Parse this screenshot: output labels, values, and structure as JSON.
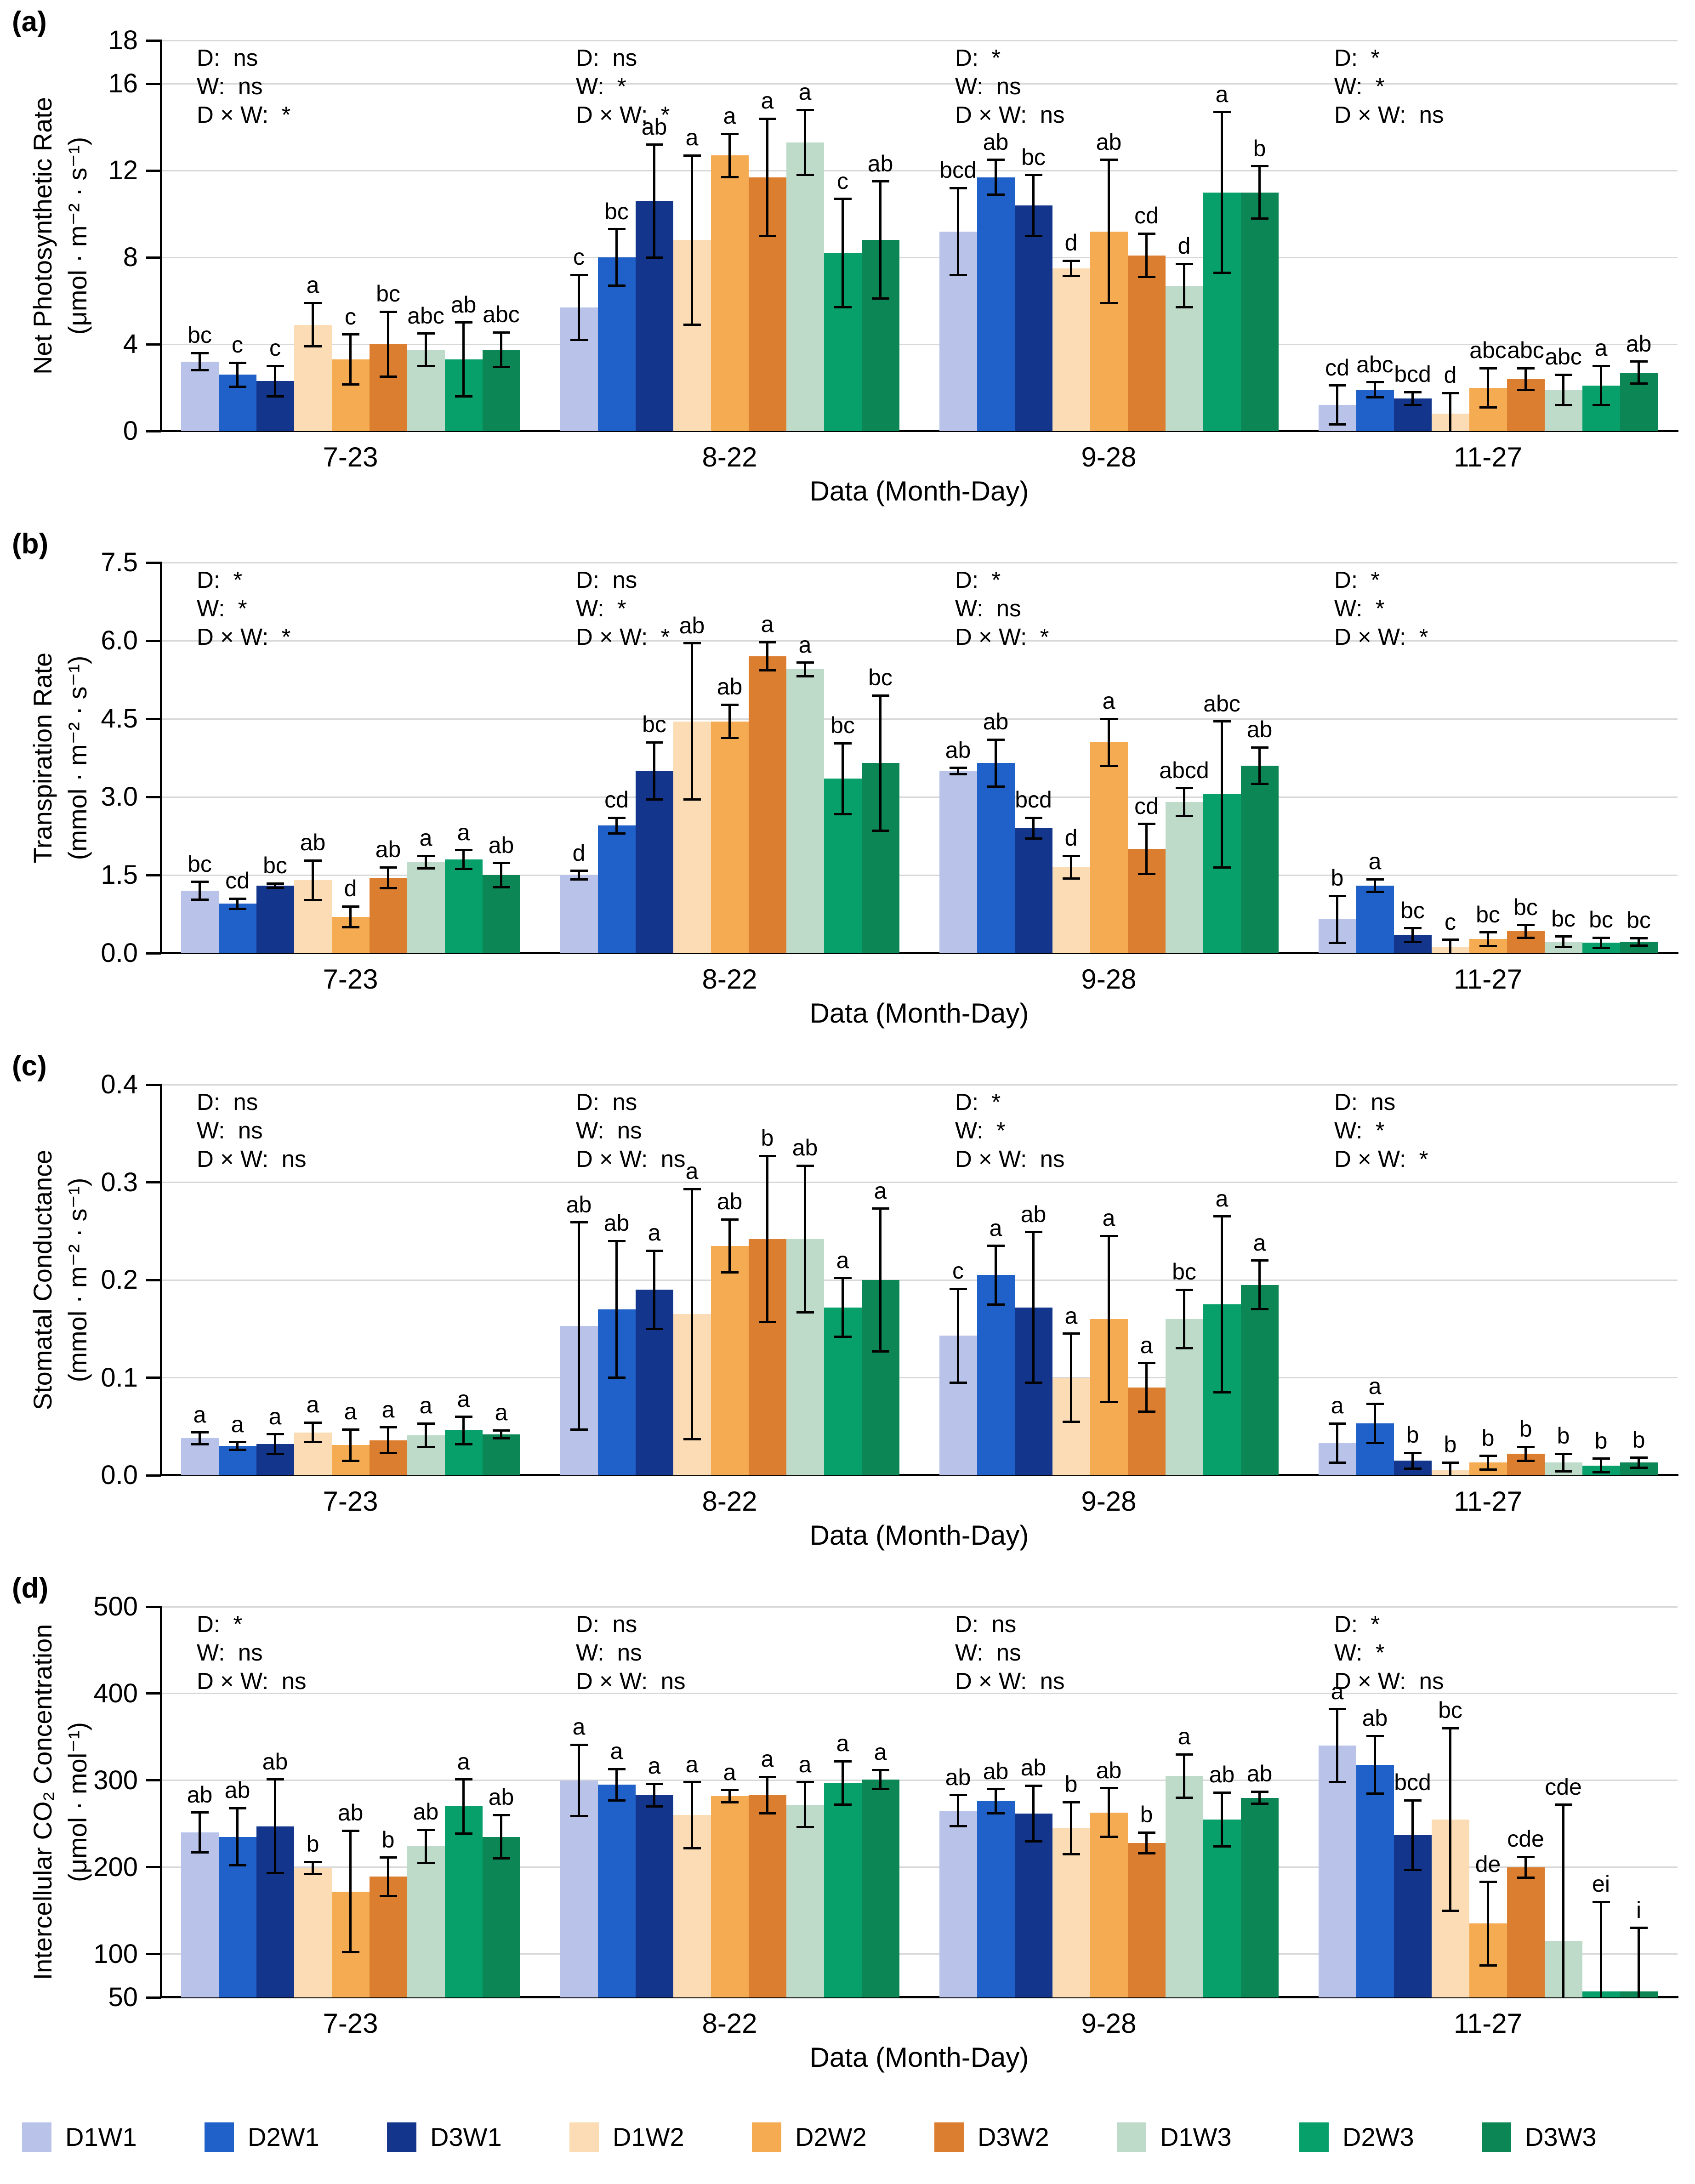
{
  "legend": {
    "series": [
      {
        "name": "D1W1",
        "color": "#b9c3e9"
      },
      {
        "name": "D2W1",
        "color": "#2061c9"
      },
      {
        "name": "D3W1",
        "color": "#13368c"
      },
      {
        "name": "D1W2",
        "color": "#fcdcb4"
      },
      {
        "name": "D2W2",
        "color": "#f5ab52"
      },
      {
        "name": "D3W2",
        "color": "#dc7e2f"
      },
      {
        "name": "D1W3",
        "color": "#bedbc9"
      },
      {
        "name": "D2W3",
        "color": "#07a06b"
      },
      {
        "name": "D3W3",
        "color": "#0c8655"
      }
    ]
  },
  "chart_data": [
    {
      "type": "bar",
      "panel": "(a)",
      "ylabel": "Net Photosynthetic Rate",
      "ylabel_units": "(μmol · m⁻² · s⁻¹)",
      "xlabel": "Data (Month-Day)",
      "ylim": [
        0,
        18
      ],
      "yticks": [
        0,
        4,
        8,
        12,
        16,
        18
      ],
      "ytick_labels": [
        "0",
        "4",
        "8",
        "12",
        "16",
        "18"
      ],
      "categories": [
        "7-23",
        "8-22",
        "9-28",
        "11-27"
      ],
      "series_names": [
        "D1W1",
        "D2W1",
        "D3W1",
        "D1W2",
        "D2W2",
        "D3W2",
        "D1W3",
        "D2W3",
        "D3W3"
      ],
      "groups": [
        {
          "category": "7-23",
          "stats": [
            "D:  ns",
            "W:  ns",
            "D × W:  *"
          ],
          "values": [
            3.2,
            2.6,
            2.3,
            4.9,
            3.3,
            4.0,
            3.75,
            3.3,
            3.75
          ],
          "errors": [
            0.4,
            0.55,
            0.7,
            1.0,
            1.15,
            1.5,
            0.75,
            1.7,
            0.8
          ],
          "sig_labels": [
            "bc",
            "c",
            "c",
            "a",
            "c",
            "bc",
            "abc",
            "ab",
            "abc"
          ]
        },
        {
          "category": "8-22",
          "stats": [
            "D:  ns",
            "W:  *",
            "D × W:  *"
          ],
          "values": [
            5.7,
            8.0,
            10.6,
            8.8,
            12.7,
            11.7,
            13.3,
            8.2,
            8.8
          ],
          "errors": [
            1.5,
            1.3,
            2.6,
            3.9,
            1.0,
            2.7,
            1.5,
            2.5,
            2.7
          ],
          "sig_labels": [
            "c",
            "bc",
            "ab",
            "a",
            "a",
            "a",
            "a",
            "c",
            "ab"
          ]
        },
        {
          "category": "9-28",
          "stats": [
            "D:  *",
            "W:  ns",
            "D × W:  ns"
          ],
          "values": [
            9.2,
            11.7,
            10.4,
            7.5,
            9.2,
            8.1,
            6.7,
            11.0,
            11.0
          ],
          "errors": [
            2.0,
            0.8,
            1.4,
            0.35,
            3.3,
            1.0,
            1.0,
            3.7,
            1.2
          ],
          "sig_labels": [
            "bcd",
            "ab",
            "bc",
            "d",
            "ab",
            "cd",
            "d",
            "a",
            "b"
          ]
        },
        {
          "category": "11-27",
          "stats": [
            "D:  *",
            "W:  *",
            "D × W:  ns"
          ],
          "values": [
            1.2,
            1.9,
            1.5,
            0.8,
            2.0,
            2.4,
            1.9,
            2.1,
            2.7
          ],
          "errors": [
            0.9,
            0.35,
            0.3,
            0.95,
            0.9,
            0.5,
            0.7,
            0.9,
            0.5
          ],
          "sig_labels": [
            "cd",
            "abc",
            "bcd",
            "d",
            "abc",
            "abc",
            "abc",
            "a",
            "ab"
          ]
        }
      ]
    },
    {
      "type": "bar",
      "panel": "(b)",
      "ylabel": "Transpiration  Rate",
      "ylabel_units": "(mmol · m⁻² · s⁻¹)",
      "xlabel": "Data (Month-Day)",
      "ylim": [
        0,
        7.5
      ],
      "yticks": [
        0,
        1.5,
        3.0,
        4.5,
        6.0,
        7.5
      ],
      "ytick_labels": [
        "0.0",
        "1.5",
        "3.0",
        "4.5",
        "6.0",
        "7.5"
      ],
      "categories": [
        "7-23",
        "8-22",
        "9-28",
        "11-27"
      ],
      "series_names": [
        "D1W1",
        "D2W1",
        "D3W1",
        "D1W2",
        "D2W2",
        "D3W2",
        "D1W3",
        "D2W3",
        "D3W3"
      ],
      "groups": [
        {
          "category": "7-23",
          "stats": [
            "D:  *",
            "W:  *",
            "D × W:  *"
          ],
          "values": [
            1.2,
            0.95,
            1.3,
            1.4,
            0.7,
            1.45,
            1.75,
            1.8,
            1.5
          ],
          "errors": [
            0.17,
            0.1,
            0.04,
            0.38,
            0.2,
            0.2,
            0.12,
            0.18,
            0.23
          ],
          "sig_labels": [
            "bc",
            "cd",
            "bc",
            "ab",
            "d",
            "ab",
            "a",
            "a",
            "ab"
          ]
        },
        {
          "category": "8-22",
          "stats": [
            "D:  ns",
            "W:  *",
            "D × W:  *"
          ],
          "values": [
            1.5,
            2.45,
            3.5,
            4.45,
            4.45,
            5.7,
            5.45,
            3.35,
            3.65
          ],
          "errors": [
            0.08,
            0.15,
            0.55,
            1.5,
            0.32,
            0.27,
            0.13,
            0.68,
            1.3
          ],
          "sig_labels": [
            "d",
            "cd",
            "bc",
            "ab",
            "ab",
            "a",
            "a",
            "bc",
            "bc"
          ]
        },
        {
          "category": "9-28",
          "stats": [
            "D:  *",
            "W:  ns",
            "D × W:  *"
          ],
          "values": [
            3.5,
            3.65,
            2.4,
            1.65,
            4.05,
            2.0,
            2.9,
            3.05,
            3.6
          ],
          "errors": [
            0.06,
            0.45,
            0.2,
            0.22,
            0.45,
            0.48,
            0.27,
            1.4,
            0.35
          ],
          "sig_labels": [
            "ab",
            "ab",
            "bcd",
            "d",
            "a",
            "cd",
            "abcd",
            "abc",
            "ab"
          ]
        },
        {
          "category": "11-27",
          "stats": [
            "D:  *",
            "W:  *",
            "D × W:  *"
          ],
          "values": [
            0.65,
            1.3,
            0.35,
            0.12,
            0.27,
            0.42,
            0.22,
            0.2,
            0.22
          ],
          "errors": [
            0.45,
            0.12,
            0.13,
            0.14,
            0.13,
            0.12,
            0.1,
            0.1,
            0.07
          ],
          "sig_labels": [
            "b",
            "a",
            "bc",
            "c",
            "bc",
            "bc",
            "bc",
            "bc",
            "bc"
          ]
        }
      ]
    },
    {
      "type": "bar",
      "panel": "(c)",
      "ylabel": "Stomatal Conductance",
      "ylabel_units": "(mmol · m⁻² · s⁻¹)",
      "xlabel": "Data (Month-Day)",
      "ylim": [
        0,
        0.4
      ],
      "yticks": [
        0,
        0.1,
        0.2,
        0.3,
        0.4
      ],
      "ytick_labels": [
        "0.0",
        "0.1",
        "0.2",
        "0.3",
        "0.4"
      ],
      "categories": [
        "7-23",
        "8-22",
        "9-28",
        "11-27"
      ],
      "series_names": [
        "D1W1",
        "D2W1",
        "D3W1",
        "D1W2",
        "D2W2",
        "D3W2",
        "D1W3",
        "D2W3",
        "D3W3"
      ],
      "groups": [
        {
          "category": "7-23",
          "stats": [
            "D:  ns",
            "W:  ns",
            "D × W:  ns"
          ],
          "values": [
            0.038,
            0.03,
            0.032,
            0.044,
            0.031,
            0.036,
            0.041,
            0.046,
            0.042
          ],
          "errors": [
            0.006,
            0.004,
            0.01,
            0.01,
            0.016,
            0.013,
            0.012,
            0.014,
            0.004
          ],
          "sig_labels": [
            "a",
            "a",
            "a",
            "a",
            "a",
            "a",
            "a",
            "a",
            "a"
          ]
        },
        {
          "category": "8-22",
          "stats": [
            "D:  ns",
            "W:  ns",
            "D × W:  ns"
          ],
          "values": [
            0.153,
            0.17,
            0.19,
            0.165,
            0.235,
            0.242,
            0.242,
            0.172,
            0.2
          ],
          "errors": [
            0.106,
            0.07,
            0.04,
            0.128,
            0.027,
            0.085,
            0.075,
            0.03,
            0.073
          ],
          "sig_labels": [
            "ab",
            "ab",
            "a",
            "a",
            "ab",
            "b",
            "ab",
            "a",
            "a"
          ]
        },
        {
          "category": "9-28",
          "stats": [
            "D:  *",
            "W:  *",
            "D × W:  ns"
          ],
          "values": [
            0.143,
            0.205,
            0.172,
            0.1,
            0.16,
            0.09,
            0.16,
            0.175,
            0.195
          ],
          "errors": [
            0.048,
            0.03,
            0.077,
            0.045,
            0.085,
            0.025,
            0.03,
            0.09,
            0.025
          ],
          "sig_labels": [
            "c",
            "a",
            "ab",
            "a",
            "a",
            "a",
            "bc",
            "a",
            "a"
          ]
        },
        {
          "category": "11-27",
          "stats": [
            "D:  ns",
            "W:  *",
            "D × W:  *"
          ],
          "values": [
            0.033,
            0.053,
            0.015,
            0.005,
            0.013,
            0.022,
            0.013,
            0.01,
            0.013
          ],
          "errors": [
            0.02,
            0.02,
            0.008,
            0.008,
            0.007,
            0.007,
            0.009,
            0.007,
            0.005
          ],
          "sig_labels": [
            "a",
            "a",
            "b",
            "b",
            "b",
            "b",
            "b",
            "b",
            "b"
          ]
        }
      ]
    },
    {
      "type": "bar",
      "panel": "(d)",
      "ylabel": "Intercellular CO₂ Concentration",
      "ylabel_units": "(μmol · mol⁻¹)",
      "xlabel": "Data (Month-Day)",
      "ylim": [
        50,
        500
      ],
      "yticks": [
        50,
        100,
        200,
        300,
        400,
        500
      ],
      "ytick_labels": [
        "50",
        "100",
        "200",
        "300",
        "400",
        "500"
      ],
      "categories": [
        "7-23",
        "8-22",
        "9-28",
        "11-27"
      ],
      "series_names": [
        "D1W1",
        "D2W1",
        "D3W1",
        "D1W2",
        "D2W2",
        "D3W2",
        "D1W3",
        "D2W3",
        "D3W3"
      ],
      "groups": [
        {
          "category": "7-23",
          "stats": [
            "D:  *",
            "W:  ns",
            "D × W:  ns"
          ],
          "values": [
            240,
            235,
            247,
            199,
            172,
            189,
            224,
            270,
            235
          ],
          "errors": [
            23,
            33,
            54,
            7,
            70,
            22,
            19,
            31,
            25
          ],
          "sig_labels": [
            "ab",
            "ab",
            "ab",
            "b",
            "ab",
            "b",
            "ab",
            "a",
            "ab"
          ]
        },
        {
          "category": "8-22",
          "stats": [
            "D:  ns",
            "W:  ns",
            "D × W:  ns"
          ],
          "values": [
            300,
            295,
            283,
            260,
            282,
            283,
            272,
            297,
            301
          ],
          "errors": [
            41,
            18,
            13,
            38,
            7,
            21,
            26,
            25,
            11
          ],
          "sig_labels": [
            "a",
            "a",
            "a",
            "a",
            "a",
            "a",
            "a",
            "a",
            "a"
          ]
        },
        {
          "category": "9-28",
          "stats": [
            "D:  ns",
            "W:  ns",
            "D × W:  ns"
          ],
          "values": [
            265,
            276,
            262,
            245,
            263,
            228,
            305,
            255,
            280
          ],
          "errors": [
            18,
            14,
            32,
            30,
            28,
            12,
            25,
            31,
            7
          ],
          "sig_labels": [
            "ab",
            "ab",
            "ab",
            "b",
            "ab",
            "b",
            "a",
            "ab",
            "ab"
          ]
        },
        {
          "category": "11-27",
          "stats": [
            "D:  *",
            "W:  *",
            "D × W:  ns"
          ],
          "values": [
            340,
            318,
            237,
            255,
            135,
            200,
            115,
            57,
            57
          ],
          "errors": [
            42,
            33,
            40,
            105,
            48,
            12,
            157,
            103,
            73
          ],
          "sig_labels": [
            "a",
            "ab",
            "bcd",
            "bc",
            "de",
            "cde",
            "cde",
            "ei",
            "i"
          ]
        }
      ]
    }
  ]
}
